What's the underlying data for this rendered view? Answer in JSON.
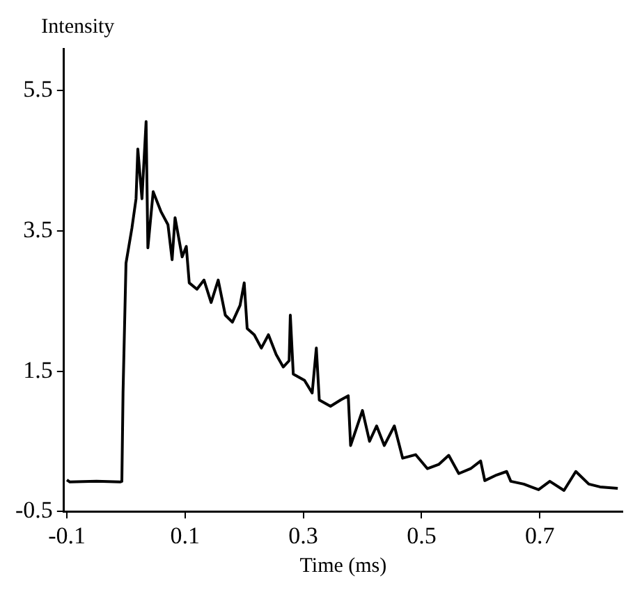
{
  "chart_data": {
    "type": "line",
    "xlabel": "Time (ms)",
    "ylabel": "Intensity",
    "xlim": [
      -0.105,
      0.84
    ],
    "ylim": [
      -0.5,
      6.1
    ],
    "xticks": [
      -0.1,
      0.1,
      0.3,
      0.5,
      0.7
    ],
    "yticks": [
      -0.5,
      1.5,
      3.5,
      5.5
    ],
    "grid": false,
    "legend": false,
    "marker": "none",
    "line_style": "solid",
    "series": [
      {
        "color": "#000000",
        "x": [
          -0.1,
          -0.095,
          -0.05,
          -0.01,
          -0.007,
          -0.005,
          0.0,
          0.01,
          0.017,
          0.02,
          0.027,
          0.034,
          0.037,
          0.046,
          0.059,
          0.071,
          0.078,
          0.083,
          0.095,
          0.102,
          0.107,
          0.12,
          0.132,
          0.144,
          0.156,
          0.168,
          0.18,
          0.193,
          0.2,
          0.205,
          0.217,
          0.229,
          0.241,
          0.254,
          0.266,
          0.276,
          0.278,
          0.283,
          0.302,
          0.315,
          0.322,
          0.327,
          0.346,
          0.363,
          0.376,
          0.38,
          0.4,
          0.412,
          0.424,
          0.437,
          0.454,
          0.468,
          0.49,
          0.51,
          0.529,
          0.546,
          0.563,
          0.583,
          0.6,
          0.607,
          0.627,
          0.644,
          0.651,
          0.673,
          0.698,
          0.717,
          0.741,
          0.761,
          0.783,
          0.802,
          0.832
        ],
        "values": [
          -0.05,
          -0.08,
          -0.07,
          -0.08,
          -0.07,
          1.2,
          3.04,
          3.54,
          3.96,
          4.67,
          3.96,
          5.06,
          3.26,
          4.06,
          3.78,
          3.59,
          3.09,
          3.69,
          3.13,
          3.28,
          2.76,
          2.67,
          2.8,
          2.48,
          2.8,
          2.3,
          2.2,
          2.44,
          2.76,
          2.11,
          2.02,
          1.83,
          2.02,
          1.74,
          1.56,
          1.65,
          2.3,
          1.46,
          1.37,
          1.19,
          1.83,
          1.09,
          1.0,
          1.09,
          1.15,
          0.44,
          0.94,
          0.5,
          0.72,
          0.44,
          0.72,
          0.26,
          0.31,
          0.11,
          0.17,
          0.3,
          0.04,
          0.11,
          0.22,
          -0.06,
          0.02,
          0.07,
          -0.07,
          -0.11,
          -0.19,
          -0.07,
          -0.2,
          0.07,
          -0.11,
          -0.15,
          -0.17
        ]
      }
    ]
  }
}
